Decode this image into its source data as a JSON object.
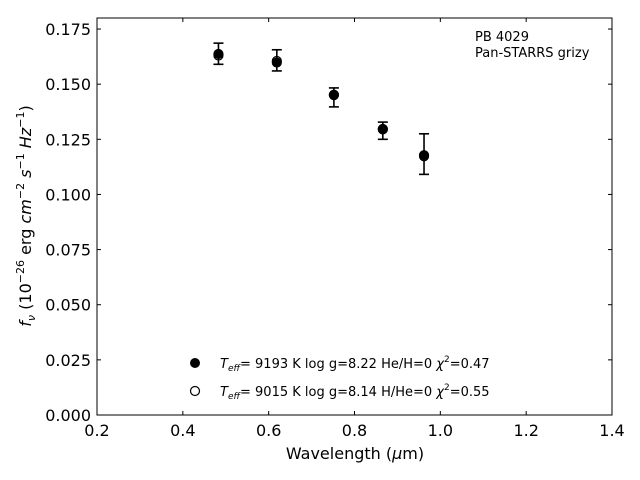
{
  "chart_data": {
    "type": "scatter",
    "xlabel_main": "Wavelength (",
    "xlabel_mu": "μ",
    "xlabel_tail": "m)",
    "ylabel": {
      "f": "f",
      "nu": "ν",
      "open": " (10",
      "exp1": "−26",
      "erg": " erg ",
      "cm": "cm",
      "exp2": "−2",
      "s": " s",
      "exp3": "−1",
      "hz": " Hz",
      "exp4": "−1",
      "close": ")"
    },
    "xlim": [
      0.2,
      1.4
    ],
    "ylim": [
      0.0,
      0.18
    ],
    "x_ticks": [
      0.2,
      0.4,
      0.6,
      0.8,
      1.0,
      1.2,
      1.4
    ],
    "x_tick_labels": [
      "0.2",
      "0.4",
      "0.6",
      "0.8",
      "1.0",
      "1.2",
      "1.4"
    ],
    "y_ticks": [
      0.0,
      0.025,
      0.05,
      0.075,
      0.1,
      0.125,
      0.15,
      0.175
    ],
    "y_tick_labels": [
      "0.000",
      "0.025",
      "0.050",
      "0.075",
      "0.100",
      "0.125",
      "0.150",
      "0.175"
    ],
    "annotation": [
      "PB 4029",
      "Pan-STARRS grizy"
    ],
    "observed": [
      {
        "x": 0.483,
        "y": 0.1638,
        "yerr": 0.0048
      },
      {
        "x": 0.619,
        "y": 0.1608,
        "yerr": 0.0048
      },
      {
        "x": 0.752,
        "y": 0.144,
        "yerr": 0.0043
      },
      {
        "x": 0.866,
        "y": 0.1289,
        "yerr": 0.0039
      },
      {
        "x": 0.962,
        "y": 0.1183,
        "yerr": 0.0092
      }
    ],
    "series": [
      {
        "marker": "filled",
        "legend": {
          "t": "T",
          "sub": "eff",
          "params": "=  9193 K  log g=8.22  He/H=0  ",
          "chi": "χ",
          "sup": "2",
          "val": "=0.47"
        },
        "points": [
          {
            "x": 0.483,
            "y": 0.1637
          },
          {
            "x": 0.619,
            "y": 0.1598
          },
          {
            "x": 0.752,
            "y": 0.145
          },
          {
            "x": 0.866,
            "y": 0.1295
          },
          {
            "x": 0.962,
            "y": 0.1178
          }
        ]
      },
      {
        "marker": "open",
        "legend": {
          "t": "T",
          "sub": "eff",
          "params": "=  9015 K  log g=8.14  H/He=0  ",
          "chi": "χ",
          "sup": "2",
          "val": "=0.55"
        },
        "points": [
          {
            "x": 0.483,
            "y": 0.163
          },
          {
            "x": 0.619,
            "y": 0.1605
          },
          {
            "x": 0.752,
            "y": 0.1452
          },
          {
            "x": 0.866,
            "y": 0.1297
          },
          {
            "x": 0.962,
            "y": 0.1173
          }
        ]
      }
    ],
    "grid": false,
    "legend_position": "lower-center"
  }
}
